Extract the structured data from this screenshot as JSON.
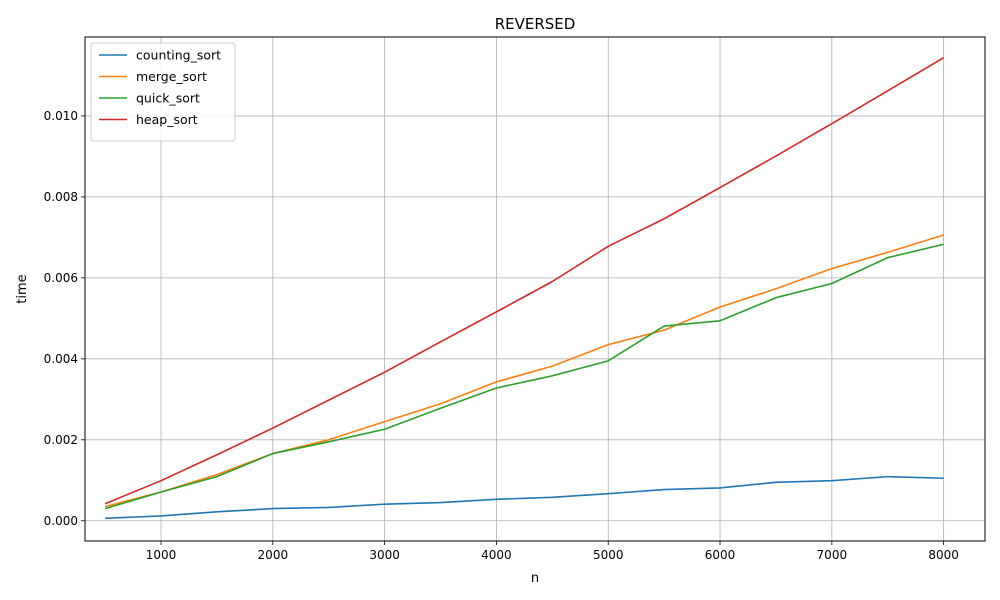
{
  "chart_data": {
    "type": "line",
    "title": "REVERSED",
    "xlabel": "n",
    "ylabel": "time",
    "xlim": [
      320,
      8370
    ],
    "ylim": [
      -0.0005,
      0.01195
    ],
    "xticks": [
      1000,
      2000,
      3000,
      4000,
      5000,
      6000,
      7000,
      8000
    ],
    "xtick_labels": [
      "1000",
      "2000",
      "3000",
      "4000",
      "5000",
      "6000",
      "7000",
      "8000"
    ],
    "yticks": [
      0.0,
      0.002,
      0.004,
      0.006,
      0.008,
      0.01
    ],
    "ytick_labels": [
      "0.000",
      "0.002",
      "0.004",
      "0.006",
      "0.008",
      "0.010"
    ],
    "grid": true,
    "legend": "top-left",
    "x": [
      500,
      1000,
      1500,
      2000,
      2500,
      3000,
      3500,
      4000,
      4500,
      5000,
      5500,
      6000,
      6500,
      7000,
      7500,
      8000
    ],
    "series": [
      {
        "name": "counting_sort",
        "color": "#1f77b4",
        "values": [
          6e-05,
          0.00012,
          0.00022,
          0.0003,
          0.00033,
          0.00041,
          0.00045,
          0.00053,
          0.00058,
          0.00067,
          0.00077,
          0.00081,
          0.00095,
          0.00099,
          0.00109,
          0.00105
        ]
      },
      {
        "name": "merge_sort",
        "color": "#ff7f0e",
        "values": [
          0.00035,
          0.00071,
          0.00114,
          0.00166,
          0.002,
          0.00245,
          0.00289,
          0.00343,
          0.00382,
          0.00435,
          0.00471,
          0.00528,
          0.00573,
          0.00623,
          0.00663,
          0.00706
        ]
      },
      {
        "name": "quick_sort",
        "color": "#2ca02c",
        "values": [
          0.0003,
          0.00071,
          0.00109,
          0.00166,
          0.00195,
          0.00226,
          0.00278,
          0.00328,
          0.00358,
          0.00395,
          0.00481,
          0.00494,
          0.00551,
          0.00586,
          0.0065,
          0.00683
        ]
      },
      {
        "name": "heap_sort",
        "color": "#d62728",
        "values": [
          0.00042,
          0.00099,
          0.00163,
          0.00229,
          0.00298,
          0.00367,
          0.00442,
          0.00516,
          0.00591,
          0.00678,
          0.00746,
          0.00823,
          0.00901,
          0.00981,
          0.01062,
          0.01144
        ]
      }
    ]
  }
}
